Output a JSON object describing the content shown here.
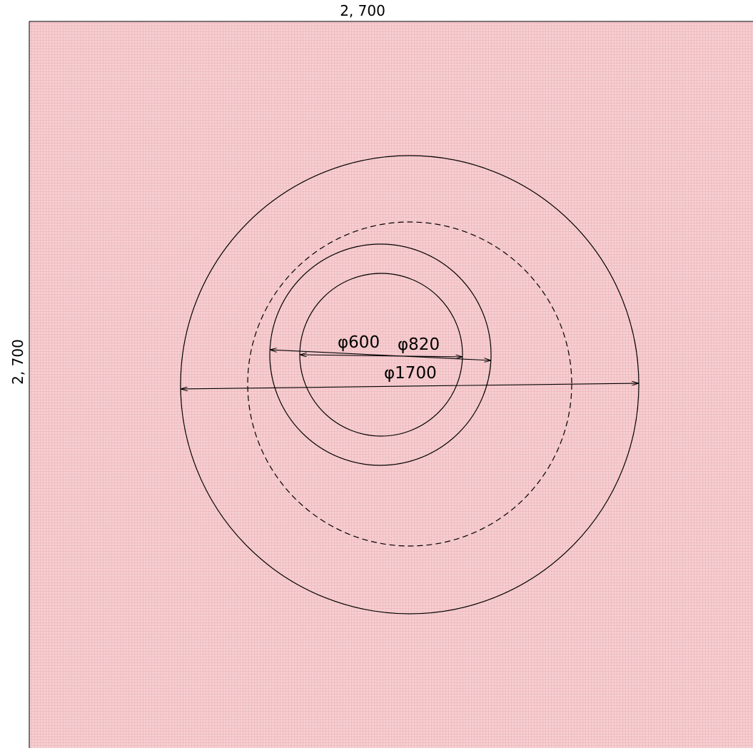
{
  "drawing": {
    "top_dimension": "2, 700",
    "side_dimension": "2, 700",
    "labels": {
      "d600": "φ600",
      "d820": "φ820",
      "d1700": "φ1700"
    }
  },
  "colors": {
    "hatch_background": "#f5c9cc",
    "hatch_line": "#e89aa0",
    "stroke": "#000000"
  }
}
